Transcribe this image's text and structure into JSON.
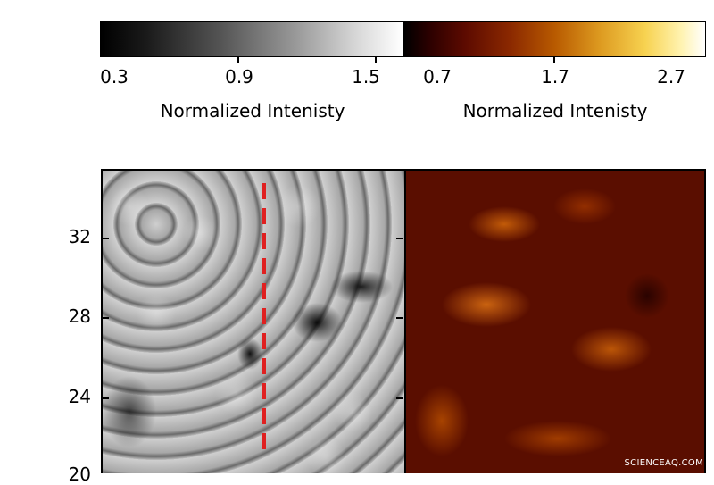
{
  "colorbars": {
    "gray": {
      "ticks": [
        "0.3",
        "0.9",
        "1.5"
      ],
      "label": "Normalized Intenisty"
    },
    "heat": {
      "ticks": [
        "0.7",
        "1.7",
        "2.7"
      ],
      "label": "Normalized Intenisty"
    }
  },
  "y_axis": {
    "ticks": [
      "32",
      "28",
      "24",
      "20"
    ]
  },
  "watermark": "SCIENCEAQ.COM",
  "colors": {
    "dashed_line": "#e02020"
  }
}
